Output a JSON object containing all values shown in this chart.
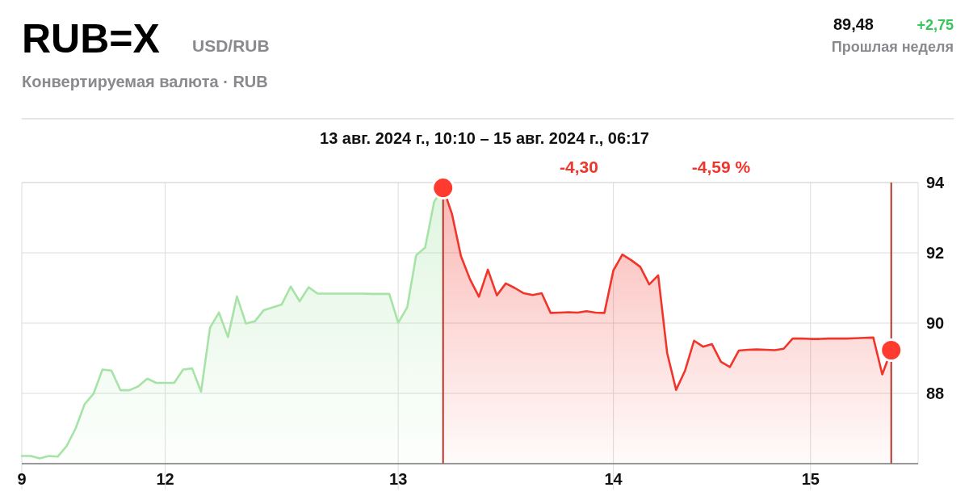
{
  "chart_data": {
    "type": "area",
    "title": "RUB=X",
    "subtitle": "USD/RUB",
    "annotations": [
      "Конвертируемая валюта · RUB",
      "89,48",
      "+2,75",
      "Прошлая неделя",
      "13 авг. 2024 г., 10:10 – 15 авг. 2024 г., 06:17",
      "-4,30",
      "-4,59 %"
    ],
    "categories": [
      "9",
      null,
      null,
      null,
      null,
      null,
      null,
      null,
      null,
      null,
      null,
      null,
      null,
      null,
      null,
      null,
      "12",
      null,
      null,
      null,
      null,
      null,
      null,
      null,
      null,
      null,
      null,
      null,
      null,
      null,
      null,
      null,
      null,
      null,
      null,
      null,
      null,
      null,
      null,
      null,
      null,
      null,
      "13",
      null,
      null,
      null,
      null,
      null,
      null,
      null,
      null,
      null,
      null,
      null,
      null,
      null,
      null,
      null,
      null,
      null,
      null,
      null,
      null,
      null,
      null,
      null,
      "14",
      null,
      null,
      null,
      null,
      null,
      null,
      null,
      null,
      null,
      null,
      null,
      null,
      null,
      null,
      null,
      null,
      null,
      null,
      null,
      null,
      null,
      "15",
      null,
      null,
      null,
      null,
      null,
      null,
      null,
      null,
      null,
      null,
      null,
      null
    ],
    "ylim": [
      86,
      94
    ],
    "yticks": [
      88,
      90,
      92,
      94
    ],
    "grid": true,
    "series": [
      {
        "color": "#a6e3a6",
        "values": [
          86.22,
          86.22,
          86.15,
          86.22,
          86.2,
          86.5,
          87.0,
          87.69,
          87.99,
          88.68,
          88.65,
          88.09,
          88.09,
          88.2,
          88.42,
          88.3,
          88.3,
          88.3,
          88.68,
          88.71,
          88.05,
          89.87,
          90.3,
          89.6,
          90.76,
          89.99,
          90.05,
          90.37,
          90.45,
          90.53,
          91.04,
          90.62,
          91.02,
          90.84,
          90.84,
          90.84,
          90.84,
          90.84,
          90.84,
          90.83,
          90.83,
          90.83,
          90.01,
          90.45,
          91.93,
          92.15,
          93.45,
          93.85,
          null,
          null,
          null,
          null,
          null,
          null,
          null,
          null,
          null,
          null,
          null,
          null,
          null,
          null,
          null,
          null,
          null,
          null,
          null,
          null,
          null,
          null,
          null,
          null,
          null,
          null,
          null,
          null,
          null,
          null,
          null,
          null,
          null,
          null,
          null,
          null,
          null,
          null,
          null,
          null,
          null,
          null,
          null,
          null,
          null,
          null,
          null,
          null,
          null,
          null,
          null,
          null,
          null
        ]
      },
      {
        "color": "#f0352b",
        "values": [
          null,
          null,
          null,
          null,
          null,
          null,
          null,
          null,
          null,
          null,
          null,
          null,
          null,
          null,
          null,
          null,
          null,
          null,
          null,
          null,
          null,
          null,
          null,
          null,
          null,
          null,
          null,
          null,
          null,
          null,
          null,
          null,
          null,
          null,
          null,
          null,
          null,
          null,
          null,
          null,
          null,
          null,
          null,
          null,
          null,
          null,
          null,
          93.85,
          93.1,
          91.9,
          91.25,
          90.75,
          91.52,
          90.79,
          91.13,
          91.0,
          90.85,
          90.8,
          90.85,
          90.29,
          90.3,
          90.31,
          90.3,
          90.34,
          90.3,
          90.29,
          91.5,
          91.95,
          91.79,
          91.6,
          91.1,
          91.36,
          89.15,
          88.1,
          88.65,
          89.5,
          89.33,
          89.4,
          88.9,
          88.75,
          89.22,
          89.24,
          89.25,
          89.24,
          89.23,
          89.27,
          89.56,
          89.56,
          89.55,
          89.55,
          89.56,
          89.56,
          89.56,
          89.57,
          89.58,
          89.59,
          88.54,
          89.23,
          null,
          null,
          null
        ]
      },
      {
        "type": "scatter",
        "color": "#ff3b30",
        "marker": "circle",
        "values": [
          null,
          null,
          null,
          null,
          null,
          null,
          null,
          null,
          null,
          null,
          null,
          null,
          null,
          null,
          null,
          null,
          null,
          null,
          null,
          null,
          null,
          null,
          null,
          null,
          null,
          null,
          null,
          null,
          null,
          null,
          null,
          null,
          null,
          null,
          null,
          null,
          null,
          null,
          null,
          null,
          null,
          null,
          null,
          null,
          null,
          null,
          null,
          93.85,
          null,
          null,
          null,
          null,
          null,
          null,
          null,
          null,
          null,
          null,
          null,
          null,
          null,
          null,
          null,
          null,
          null,
          null,
          null,
          null,
          null,
          null,
          null,
          null,
          null,
          null,
          null,
          null,
          null,
          null,
          null,
          null,
          null,
          null,
          null,
          null,
          null,
          null,
          null,
          null,
          null,
          null,
          null,
          null,
          null,
          null,
          null,
          null,
          null,
          89.23,
          null,
          null,
          null
        ]
      }
    ]
  }
}
